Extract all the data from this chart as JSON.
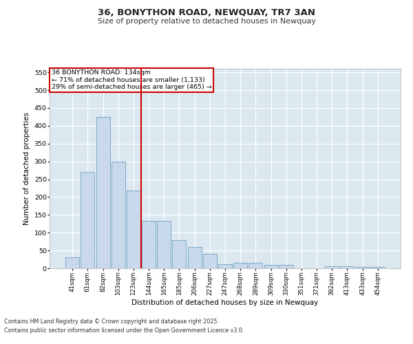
{
  "title1": "36, BONYTHON ROAD, NEWQUAY, TR7 3AN",
  "title2": "Size of property relative to detached houses in Newquay",
  "xlabel": "Distribution of detached houses by size in Newquay",
  "ylabel": "Number of detached properties",
  "bar_color": "#c9d9eb",
  "bar_edge_color": "#7aaac8",
  "categories": [
    "41sqm",
    "61sqm",
    "82sqm",
    "103sqm",
    "123sqm",
    "144sqm",
    "165sqm",
    "185sqm",
    "206sqm",
    "227sqm",
    "247sqm",
    "268sqm",
    "289sqm",
    "309sqm",
    "330sqm",
    "351sqm",
    "371sqm",
    "392sqm",
    "413sqm",
    "433sqm",
    "454sqm"
  ],
  "values": [
    30,
    270,
    425,
    300,
    218,
    133,
    133,
    80,
    60,
    40,
    12,
    15,
    15,
    10,
    10,
    0,
    0,
    5,
    5,
    3,
    3
  ],
  "vline_x": 4.5,
  "vline_color": "#cc0000",
  "annotation_text": "36 BONYTHON ROAD: 134sqm\n← 71% of detached houses are smaller (1,133)\n29% of semi-detached houses are larger (465) →",
  "annotation_box_color": "#cc0000",
  "ylim": [
    0,
    560
  ],
  "yticks": [
    0,
    50,
    100,
    150,
    200,
    250,
    300,
    350,
    400,
    450,
    500,
    550
  ],
  "footer1": "Contains HM Land Registry data © Crown copyright and database right 2025.",
  "footer2": "Contains public sector information licensed under the Open Government Licence v3.0.",
  "fig_bg_color": "#ffffff",
  "plot_bg_color": "#dce8f0",
  "grid_color": "#ffffff"
}
